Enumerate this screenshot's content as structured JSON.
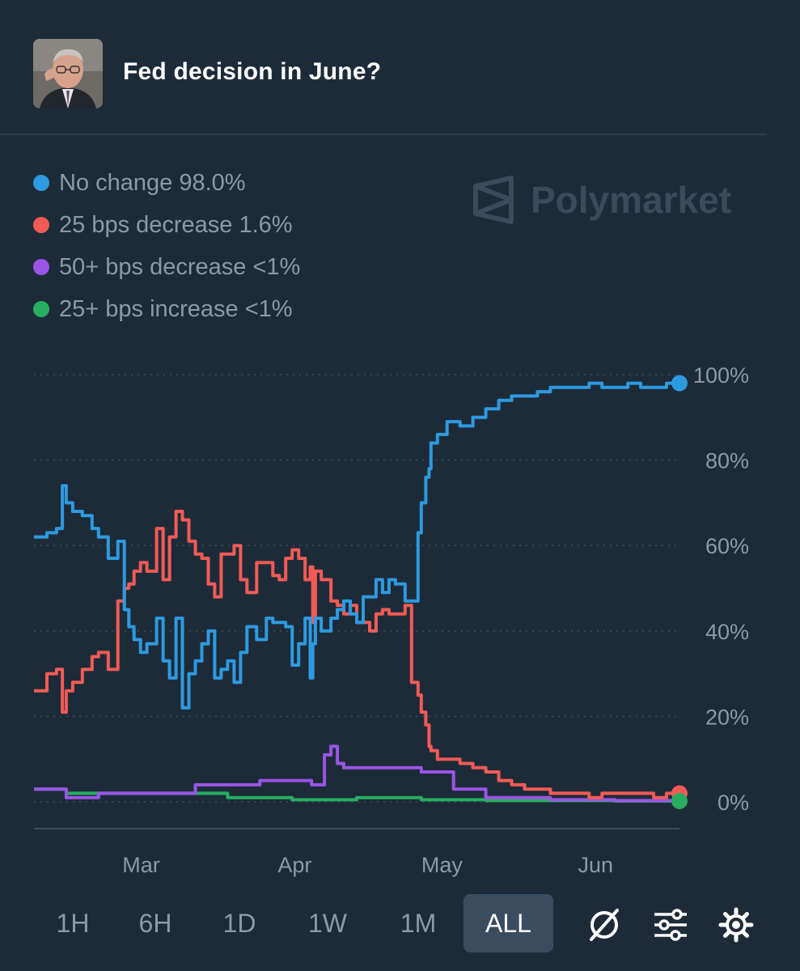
{
  "header": {
    "title": "Fed decision in June?",
    "avatar_icon": "avatar-photo"
  },
  "legend": [
    {
      "label": "No change 98.0%",
      "color": "#2e9ae0"
    },
    {
      "label": "25 bps decrease 1.6%",
      "color": "#f25b55"
    },
    {
      "label": "50+ bps decrease <1%",
      "color": "#9a55e6"
    },
    {
      "label": "25+ bps increase <1%",
      "color": "#27ae60"
    }
  ],
  "watermark": {
    "text": "Polymarket"
  },
  "ranges": [
    {
      "label": "1H",
      "active": false
    },
    {
      "label": "6H",
      "active": false
    },
    {
      "label": "1D",
      "active": false
    },
    {
      "label": "1W",
      "active": false
    },
    {
      "label": "1M",
      "active": false
    },
    {
      "label": "ALL",
      "active": true
    }
  ],
  "controls": {
    "icons": [
      "crossed-out-circle-icon",
      "sliders-icon",
      "gear-icon"
    ]
  },
  "chart_data": {
    "type": "line",
    "ylim": [
      0,
      100
    ],
    "y_ticks": [
      "0%",
      "20%",
      "40%",
      "60%",
      "80%",
      "100%"
    ],
    "x_ticks": [
      {
        "label": "Mar",
        "t": 0.166
      },
      {
        "label": "Apr",
        "t": 0.404
      },
      {
        "label": "May",
        "t": 0.632
      },
      {
        "label": "Jun",
        "t": 0.87
      }
    ],
    "grid": true,
    "series": [
      {
        "name": "No change",
        "color": "#2e9ae0",
        "x": [
          0,
          0.02,
          0.035,
          0.044,
          0.05,
          0.06,
          0.075,
          0.09,
          0.1,
          0.115,
          0.13,
          0.14,
          0.147,
          0.155,
          0.165,
          0.175,
          0.19,
          0.2,
          0.21,
          0.22,
          0.23,
          0.24,
          0.25,
          0.26,
          0.27,
          0.28,
          0.29,
          0.3,
          0.31,
          0.32,
          0.33,
          0.345,
          0.36,
          0.37,
          0.38,
          0.39,
          0.4,
          0.41,
          0.42,
          0.428,
          0.432,
          0.436,
          0.445,
          0.46,
          0.47,
          0.48,
          0.49,
          0.5,
          0.51,
          0.52,
          0.53,
          0.54,
          0.55,
          0.56,
          0.575,
          0.585,
          0.595,
          0.6,
          0.607,
          0.612,
          0.615,
          0.625,
          0.64,
          0.66,
          0.68,
          0.7,
          0.72,
          0.74,
          0.76,
          0.78,
          0.8,
          0.82,
          0.84,
          0.86,
          0.88,
          0.9,
          0.92,
          0.94,
          0.96,
          0.98,
          1.0
        ],
        "y": [
          62,
          63,
          64,
          74,
          70,
          68,
          67,
          64,
          62,
          57,
          61,
          45,
          41,
          38,
          35,
          37,
          43,
          33,
          29,
          43,
          22,
          30,
          33,
          37,
          40,
          29,
          31,
          33,
          28,
          35,
          41,
          38,
          43,
          42,
          42,
          41,
          32,
          37,
          43,
          29,
          37,
          43,
          40,
          43,
          45,
          47,
          44,
          42,
          48,
          48,
          52,
          49,
          52,
          51,
          47,
          47,
          63,
          70,
          76,
          78,
          84,
          86,
          89,
          88,
          90,
          92,
          94,
          95,
          95,
          96,
          97,
          97,
          97,
          98,
          97,
          97,
          98,
          97,
          97,
          98,
          98
        ]
      },
      {
        "name": "25 bps decrease",
        "color": "#f25b55",
        "x": [
          0,
          0.02,
          0.035,
          0.044,
          0.05,
          0.06,
          0.075,
          0.09,
          0.1,
          0.115,
          0.13,
          0.14,
          0.147,
          0.155,
          0.165,
          0.175,
          0.19,
          0.2,
          0.21,
          0.22,
          0.23,
          0.24,
          0.25,
          0.26,
          0.27,
          0.28,
          0.29,
          0.3,
          0.31,
          0.32,
          0.33,
          0.345,
          0.36,
          0.37,
          0.38,
          0.39,
          0.4,
          0.41,
          0.42,
          0.428,
          0.432,
          0.436,
          0.445,
          0.46,
          0.47,
          0.48,
          0.49,
          0.5,
          0.51,
          0.52,
          0.53,
          0.54,
          0.55,
          0.56,
          0.575,
          0.585,
          0.595,
          0.6,
          0.607,
          0.612,
          0.615,
          0.625,
          0.64,
          0.66,
          0.68,
          0.7,
          0.72,
          0.74,
          0.76,
          0.78,
          0.8,
          0.82,
          0.84,
          0.86,
          0.88,
          0.9,
          0.92,
          0.94,
          0.96,
          0.98,
          1.0
        ],
        "y": [
          26,
          30,
          31,
          21,
          26,
          28,
          31,
          34,
          35,
          31,
          47,
          50,
          51,
          54,
          56,
          54,
          64,
          52,
          62,
          68,
          66,
          61,
          58,
          57,
          51,
          48,
          58,
          58,
          60,
          52,
          49,
          56,
          56,
          53,
          52,
          57,
          59,
          57,
          52,
          55,
          42,
          54,
          52,
          47,
          46,
          44,
          46,
          42,
          42,
          40,
          44,
          45,
          44,
          44,
          46,
          28,
          25,
          21,
          18,
          13,
          12,
          10,
          10,
          9,
          8,
          7,
          5,
          4,
          3,
          3,
          2,
          2,
          2,
          1,
          2,
          2,
          2,
          2,
          1,
          2,
          2
        ]
      },
      {
        "name": "50+ bps decrease",
        "color": "#9a55e6",
        "x": [
          0,
          0.04,
          0.05,
          0.1,
          0.2,
          0.25,
          0.3,
          0.35,
          0.4,
          0.43,
          0.45,
          0.46,
          0.47,
          0.48,
          0.5,
          0.55,
          0.6,
          0.65,
          0.7,
          0.8,
          0.9,
          1.0
        ],
        "y": [
          3,
          3,
          1,
          2,
          2,
          4,
          4,
          5,
          5,
          4,
          11,
          13,
          9,
          8,
          8,
          8,
          7,
          3,
          1,
          0.5,
          0.3,
          0.3
        ]
      },
      {
        "name": "25+ bps increase",
        "color": "#27ae60",
        "x": [
          0,
          0.05,
          0.1,
          0.2,
          0.3,
          0.4,
          0.5,
          0.6,
          0.7,
          0.8,
          0.9,
          1.0
        ],
        "y": [
          3,
          2,
          2,
          2,
          1,
          0.5,
          1,
          0.5,
          0.3,
          0.3,
          0.2,
          0.2
        ]
      }
    ]
  }
}
